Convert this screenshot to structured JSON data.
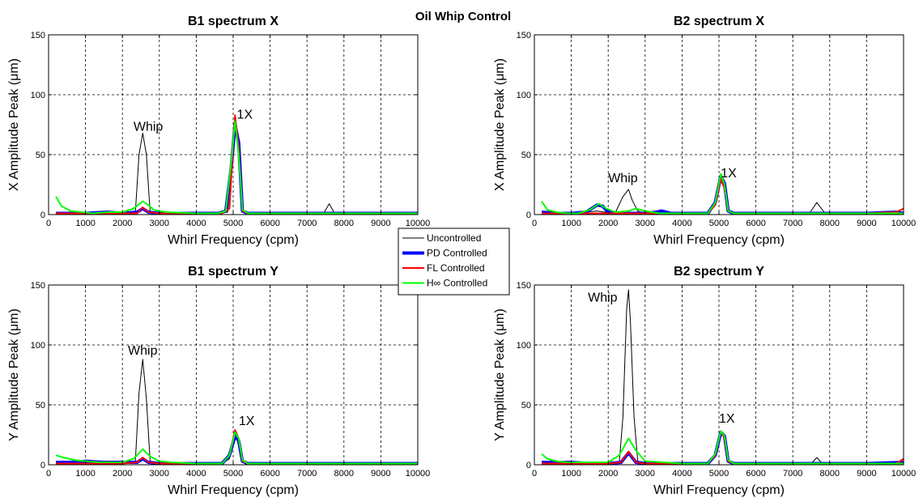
{
  "figure_title": "Oil Whip Control",
  "legend": [
    {
      "label": "Uncontrolled",
      "color": "#000000"
    },
    {
      "label": "PD Controlled",
      "color": "#0000ff"
    },
    {
      "label": "FL Controlled",
      "color": "#ff0000"
    },
    {
      "label": "H∞ Controlled",
      "color": "#00ff00"
    }
  ],
  "chart_data": [
    {
      "type": "line",
      "title": "B1 spectrum X",
      "xlabel": "Whirl Frequency (cpm)",
      "ylabel": "X Amplitude Peak (μm)",
      "xlim": [
        0,
        10000
      ],
      "ylim": [
        0,
        150
      ],
      "xticks": [
        0,
        1000,
        2000,
        3000,
        4000,
        5000,
        6000,
        7000,
        8000,
        9000,
        10000
      ],
      "yticks": [
        0,
        50,
        100,
        150
      ],
      "grid": true,
      "annotations": [
        {
          "text": "Whip",
          "x": 2300,
          "y": 70
        },
        {
          "text": "1X",
          "x": 5100,
          "y": 80
        }
      ],
      "series": [
        {
          "name": "Uncontrolled",
          "x": [
            200,
            600,
            1000,
            1500,
            2000,
            2350,
            2450,
            2550,
            2650,
            2750,
            3000,
            4000,
            4600,
            4850,
            4950,
            5050,
            5150,
            5250,
            5400,
            6000,
            7000,
            7450,
            7600,
            7750,
            8000,
            9000,
            10000
          ],
          "values": [
            1,
            1,
            1,
            1,
            1,
            2,
            50,
            68,
            50,
            2,
            1,
            1,
            1,
            2,
            40,
            80,
            60,
            3,
            1,
            1,
            1,
            1,
            9,
            1,
            1,
            1,
            1
          ]
        },
        {
          "name": "PD Controlled",
          "x": [
            200,
            600,
            1000,
            1600,
            2000,
            2400,
            2550,
            2700,
            3000,
            4000,
            4600,
            4800,
            4950,
            5050,
            5150,
            5250,
            5400,
            6000,
            7000,
            8000,
            9000,
            10000
          ],
          "values": [
            1,
            1,
            1,
            2,
            1,
            2,
            5,
            2,
            1,
            1,
            1,
            3,
            40,
            75,
            60,
            3,
            1,
            1,
            1,
            1,
            1,
            1
          ]
        },
        {
          "name": "FL Controlled",
          "x": [
            200,
            600,
            1000,
            2000,
            2400,
            2550,
            2700,
            3000,
            4000,
            4700,
            4900,
            5000,
            5050,
            5150,
            5250,
            5400,
            6000,
            8000,
            10000
          ],
          "values": [
            1,
            1,
            1,
            1,
            1,
            6,
            2,
            1,
            1,
            1,
            5,
            60,
            83,
            55,
            3,
            1,
            1,
            1,
            1
          ]
        },
        {
          "name": "H∞ Controlled",
          "x": [
            200,
            350,
            600,
            900,
            1200,
            1600,
            2000,
            2300,
            2550,
            2700,
            2850,
            3000,
            3200,
            4000,
            4600,
            4800,
            4950,
            5050,
            5150,
            5250,
            5400,
            6000,
            7000,
            8000,
            9000,
            10000
          ],
          "values": [
            15,
            7,
            3,
            2,
            1,
            2,
            2,
            5,
            11,
            8,
            4,
            3,
            2,
            1,
            1,
            3,
            45,
            78,
            50,
            4,
            1,
            1,
            1,
            1,
            1,
            1
          ]
        }
      ]
    },
    {
      "type": "line",
      "title": "B2 spectrum X",
      "xlabel": "Whirl Frequency (cpm)",
      "ylabel": "X Amplitude Peak (μm)",
      "xlim": [
        0,
        10000
      ],
      "ylim": [
        0,
        150
      ],
      "xticks": [
        0,
        1000,
        2000,
        3000,
        4000,
        5000,
        6000,
        7000,
        8000,
        9000,
        10000
      ],
      "yticks": [
        0,
        50,
        100,
        150
      ],
      "grid": true,
      "annotations": [
        {
          "text": "Whip",
          "x": 2000,
          "y": 27
        },
        {
          "text": "1X",
          "x": 5050,
          "y": 31
        }
      ],
      "series": [
        {
          "name": "Uncontrolled",
          "x": [
            200,
            600,
            1000,
            1400,
            1700,
            1900,
            2200,
            2400,
            2550,
            2650,
            2800,
            3000,
            3400,
            4000,
            4700,
            4900,
            5050,
            5150,
            5250,
            5400,
            6000,
            7000,
            7450,
            7650,
            7850,
            8000,
            9000,
            10000
          ],
          "values": [
            1,
            1,
            1,
            2,
            3,
            2,
            2,
            15,
            21,
            12,
            3,
            1,
            1,
            1,
            1,
            10,
            28,
            22,
            3,
            1,
            1,
            1,
            1,
            10,
            2,
            1,
            1,
            1
          ]
        },
        {
          "name": "PD Controlled",
          "x": [
            200,
            600,
            1000,
            1400,
            1700,
            1850,
            2000,
            2400,
            2700,
            3000,
            3300,
            3450,
            3700,
            4000,
            4700,
            4900,
            5050,
            5150,
            5250,
            5400,
            6000,
            7000,
            8000,
            9000,
            9800,
            10000
          ],
          "values": [
            2,
            1,
            1,
            2,
            8,
            7,
            2,
            1,
            1,
            1,
            2,
            3,
            1,
            1,
            1,
            10,
            32,
            26,
            3,
            1,
            1,
            1,
            1,
            1,
            2,
            1
          ]
        },
        {
          "name": "FL Controlled",
          "x": [
            200,
            600,
            1000,
            1600,
            2000,
            2500,
            3000,
            4000,
            4700,
            4900,
            5050,
            5150,
            5250,
            5400,
            6000,
            7000,
            8000,
            9000,
            9800,
            10000
          ],
          "values": [
            1,
            1,
            1,
            1,
            1,
            1,
            1,
            1,
            1,
            8,
            30,
            22,
            3,
            1,
            1,
            1,
            1,
            1,
            2,
            5
          ]
        },
        {
          "name": "H∞ Controlled",
          "x": [
            200,
            350,
            600,
            900,
            1200,
            1500,
            1750,
            1950,
            2200,
            2550,
            2750,
            3000,
            3400,
            4000,
            4700,
            4900,
            5050,
            5150,
            5250,
            5400,
            6000,
            7000,
            8000,
            9000,
            10000
          ],
          "values": [
            11,
            4,
            2,
            1,
            1,
            4,
            9,
            5,
            2,
            3,
            5,
            3,
            1,
            1,
            1,
            10,
            34,
            25,
            3,
            1,
            1,
            1,
            1,
            1,
            1
          ]
        }
      ]
    },
    {
      "type": "line",
      "title": "B1 spectrum Y",
      "xlabel": "Whirl Frequency (cpm)",
      "ylabel": "Y Amplitude Peak (μm)",
      "xlim": [
        0,
        10000
      ],
      "ylim": [
        0,
        150
      ],
      "xticks": [
        0,
        1000,
        2000,
        3000,
        4000,
        5000,
        6000,
        7000,
        8000,
        9000,
        10000
      ],
      "yticks": [
        0,
        50,
        100,
        150
      ],
      "grid": true,
      "annotations": [
        {
          "text": "Whip",
          "x": 2150,
          "y": 92
        },
        {
          "text": "1X",
          "x": 5150,
          "y": 33
        }
      ],
      "series": [
        {
          "name": "Uncontrolled",
          "x": [
            200,
            600,
            1000,
            1500,
            2000,
            2350,
            2450,
            2550,
            2650,
            2750,
            3000,
            4000,
            4700,
            4900,
            5050,
            5150,
            5250,
            5400,
            6000,
            7000,
            8000,
            9000,
            10000
          ],
          "values": [
            2,
            2,
            3,
            2,
            2,
            3,
            60,
            88,
            55,
            3,
            2,
            1,
            1,
            5,
            24,
            20,
            3,
            1,
            1,
            1,
            1,
            1,
            1
          ]
        },
        {
          "name": "PD Controlled",
          "x": [
            200,
            600,
            1000,
            1500,
            2000,
            2400,
            2550,
            2700,
            3000,
            4000,
            4700,
            4900,
            5050,
            5150,
            5250,
            5400,
            6000,
            7000,
            8000,
            9000,
            10000
          ],
          "values": [
            2,
            2,
            3,
            2,
            2,
            2,
            5,
            2,
            1,
            1,
            1,
            8,
            24,
            20,
            3,
            1,
            1,
            1,
            1,
            1,
            1
          ]
        },
        {
          "name": "FL Controlled",
          "x": [
            200,
            600,
            1000,
            2000,
            2400,
            2550,
            2700,
            3000,
            4000,
            4700,
            4900,
            5050,
            5150,
            5250,
            5400,
            6000,
            8000,
            10000
          ],
          "values": [
            1,
            1,
            1,
            1,
            2,
            6,
            2,
            1,
            1,
            1,
            8,
            29,
            22,
            3,
            1,
            1,
            1,
            1
          ]
        },
        {
          "name": "H∞ Controlled",
          "x": [
            200,
            400,
            700,
            1000,
            1400,
            2000,
            2300,
            2550,
            2750,
            3000,
            3300,
            4000,
            4700,
            4900,
            5050,
            5150,
            5250,
            5400,
            6000,
            7000,
            8000,
            9000,
            10000
          ],
          "values": [
            8,
            6,
            4,
            3,
            2,
            2,
            5,
            13,
            7,
            3,
            2,
            1,
            1,
            8,
            27,
            22,
            4,
            1,
            1,
            1,
            1,
            1,
            1
          ]
        }
      ]
    },
    {
      "type": "line",
      "title": "B2 spectrum Y",
      "xlabel": "Whirl Frequency (cpm)",
      "ylabel": "Y Amplitude Peak (μm)",
      "xlim": [
        0,
        10000
      ],
      "ylim": [
        0,
        150
      ],
      "xticks": [
        0,
        1000,
        2000,
        3000,
        4000,
        5000,
        6000,
        7000,
        8000,
        9000,
        10000
      ],
      "yticks": [
        0,
        50,
        100,
        150
      ],
      "grid": true,
      "annotations": [
        {
          "text": "Whip",
          "x": 1450,
          "y": 136
        },
        {
          "text": "1X",
          "x": 5000,
          "y": 35
        }
      ],
      "series": [
        {
          "name": "Uncontrolled",
          "x": [
            200,
            600,
            1000,
            1500,
            2000,
            2300,
            2400,
            2500,
            2550,
            2600,
            2700,
            2800,
            3000,
            4000,
            4700,
            4900,
            5050,
            5150,
            5250,
            5400,
            6000,
            7000,
            7500,
            7650,
            7800,
            8000,
            9000,
            10000
          ],
          "values": [
            2,
            2,
            2,
            1,
            1,
            2,
            40,
            130,
            146,
            120,
            40,
            3,
            2,
            1,
            1,
            8,
            27,
            22,
            3,
            1,
            1,
            1,
            1,
            6,
            1,
            1,
            1,
            1
          ]
        },
        {
          "name": "PD Controlled",
          "x": [
            200,
            600,
            1000,
            1500,
            2000,
            2350,
            2550,
            2750,
            3000,
            4000,
            4700,
            4900,
            5050,
            5150,
            5250,
            5400,
            6000,
            7000,
            8000,
            9000,
            10000
          ],
          "values": [
            2,
            2,
            2,
            1,
            1,
            2,
            10,
            2,
            1,
            1,
            1,
            8,
            27,
            24,
            3,
            1,
            1,
            1,
            1,
            1,
            2
          ]
        },
        {
          "name": "FL Controlled",
          "x": [
            200,
            600,
            1000,
            2000,
            2350,
            2550,
            2750,
            3000,
            4000,
            4700,
            4900,
            5050,
            5150,
            5250,
            5400,
            6000,
            8000,
            9800,
            10000
          ],
          "values": [
            1,
            1,
            1,
            1,
            2,
            11,
            2,
            1,
            1,
            1,
            8,
            28,
            22,
            3,
            1,
            1,
            1,
            1,
            5
          ]
        },
        {
          "name": "H∞ Controlled",
          "x": [
            200,
            350,
            600,
            900,
            1300,
            2000,
            2300,
            2550,
            2750,
            3000,
            3500,
            4000,
            4700,
            4900,
            5050,
            5150,
            5250,
            5400,
            6000,
            7000,
            8000,
            9000,
            10000
          ],
          "values": [
            9,
            5,
            3,
            2,
            2,
            2,
            8,
            22,
            12,
            3,
            2,
            1,
            1,
            9,
            28,
            24,
            4,
            1,
            1,
            1,
            1,
            1,
            1
          ]
        }
      ]
    }
  ]
}
